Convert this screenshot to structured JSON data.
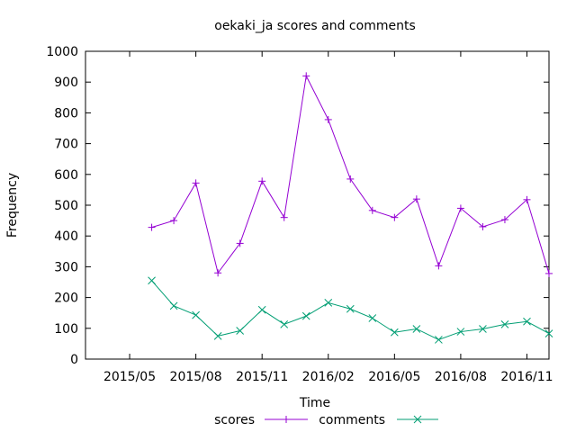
{
  "chart_data": {
    "type": "line",
    "title": "oekaki_ja scores and comments",
    "xlabel": "Time",
    "ylabel": "Frequency",
    "ylim": [
      0,
      1000
    ],
    "yticks": [
      0,
      100,
      200,
      300,
      400,
      500,
      600,
      700,
      800,
      900,
      1000
    ],
    "xlim": [
      "2015-03",
      "2016-12"
    ],
    "xticks": [
      {
        "value": "2015-05",
        "label": "2015/05"
      },
      {
        "value": "2015-08",
        "label": "2015/08"
      },
      {
        "value": "2015-11",
        "label": "2015/11"
      },
      {
        "value": "2016-02",
        "label": "2016/02"
      },
      {
        "value": "2016-05",
        "label": "2016/05"
      },
      {
        "value": "2016-08",
        "label": "2016/08"
      },
      {
        "value": "2016-11",
        "label": "2016/11"
      }
    ],
    "grid": false,
    "legend_position": "bottom",
    "x": [
      "2015-06",
      "2015-07",
      "2015-08",
      "2015-09",
      "2015-10",
      "2015-11",
      "2015-12",
      "2016-01",
      "2016-02",
      "2016-03",
      "2016-04",
      "2016-05",
      "2016-06",
      "2016-07",
      "2016-08",
      "2016-09",
      "2016-10",
      "2016-11",
      "2016-12"
    ],
    "series": [
      {
        "name": "scores",
        "color": "#9400d3",
        "marker": "plus",
        "values": [
          428,
          450,
          572,
          280,
          376,
          578,
          460,
          920,
          778,
          585,
          483,
          460,
          520,
          303,
          490,
          430,
          453,
          518,
          278
        ]
      },
      {
        "name": "comments",
        "color": "#009e73",
        "marker": "cross",
        "values": [
          255,
          173,
          143,
          75,
          92,
          160,
          113,
          140,
          183,
          163,
          133,
          87,
          98,
          63,
          89,
          98,
          113,
          122,
          83
        ]
      }
    ]
  }
}
